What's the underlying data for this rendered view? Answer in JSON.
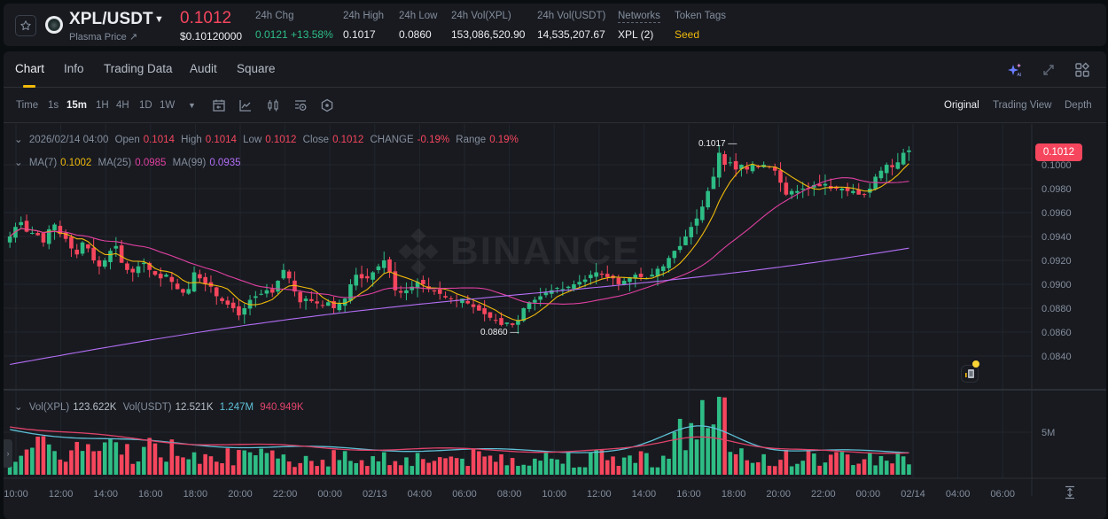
{
  "header": {
    "pair": "XPL/USDT",
    "subtitle": "Plasma Price ↗",
    "last_price": "0.1012",
    "usd_price": "$0.10120000",
    "stats": [
      {
        "label": "24h Chg",
        "value": "0.0121 +13.58%",
        "color": "green"
      },
      {
        "label": "24h High",
        "value": "0.1017"
      },
      {
        "label": "24h Low",
        "value": "0.0860"
      },
      {
        "label": "24h Vol(XPL)",
        "value": "153,086,520.90"
      },
      {
        "label": "24h Vol(USDT)",
        "value": "14,535,207.67"
      },
      {
        "label": "Networks",
        "value": "XPL (2)"
      },
      {
        "label": "Token Tags",
        "value": "Seed",
        "color": "yellow"
      }
    ]
  },
  "tabs": [
    "Chart",
    "Info",
    "Trading Data",
    "Audit",
    "Square"
  ],
  "active_tab": "Chart",
  "toolbar": {
    "time_label": "Time",
    "intervals": [
      "1s",
      "15m",
      "1H",
      "4H",
      "1D",
      "1W"
    ],
    "active_interval": "15m",
    "views": [
      "Original",
      "Trading View",
      "Depth"
    ],
    "active_view": "Original"
  },
  "ohlc_legend": {
    "datetime": "2026/02/14 04:00",
    "open_label": "Open",
    "open": "0.1014",
    "high_label": "High",
    "high": "0.1014",
    "low_label": "Low",
    "low": "0.1012",
    "close_label": "Close",
    "close": "0.1012",
    "change_label": "CHANGE",
    "change": "-0.19%",
    "range_label": "Range",
    "range": "0.19%"
  },
  "ma_legend": {
    "ma7_label": "MA(7)",
    "ma7": "0.1002",
    "ma25_label": "MA(25)",
    "ma25": "0.0985",
    "ma99_label": "MA(99)",
    "ma99": "0.0935"
  },
  "vol_legend": {
    "vol_xpl_label": "Vol(XPL)",
    "vol_xpl": "123.622K",
    "vol_usdt_label": "Vol(USDT)",
    "vol_usdt": "12.521K",
    "ma_a": "1.247M",
    "ma_b": "940.949K"
  },
  "price_tag": "0.1012",
  "high_marker": "0.1017",
  "low_marker": "0.0860",
  "watermark": "BINANCE",
  "colors": {
    "up": "#2ebd85",
    "down": "#f6465d",
    "ma7": "#f0b90b",
    "ma25": "#e040a0",
    "ma99": "#b46ef5",
    "vol_ma_a": "#5ec0d6",
    "vol_ma_b": "#e0436a",
    "accent": "#f0b90b"
  },
  "chart_data": {
    "type": "candlestick",
    "interval": "15m",
    "y_ticks": [
      "0.1000",
      "0.0980",
      "0.0960",
      "0.0940",
      "0.0920",
      "0.0900",
      "0.0880",
      "0.0860",
      "0.0840"
    ],
    "vol_ticks": [
      "5M"
    ],
    "x_ticks": [
      "10:00",
      "12:00",
      "14:00",
      "16:00",
      "18:00",
      "20:00",
      "22:00",
      "00:00",
      "02/13",
      "04:00",
      "06:00",
      "08:00",
      "10:00",
      "12:00",
      "14:00",
      "16:00",
      "18:00",
      "20:00",
      "22:00",
      "00:00",
      "02/14",
      "04:00",
      "06:00"
    ],
    "close_path": [
      0.094,
      0.0948,
      0.0952,
      0.0944,
      0.0943,
      0.0941,
      0.0935,
      0.0946,
      0.095,
      0.0942,
      0.0938,
      0.093,
      0.0925,
      0.0935,
      0.093,
      0.092,
      0.0915,
      0.092,
      0.0928,
      0.0932,
      0.0918,
      0.0912,
      0.091,
      0.0915,
      0.0918,
      0.0912,
      0.0908,
      0.0905,
      0.0908,
      0.0902,
      0.0896,
      0.0893,
      0.0896,
      0.091,
      0.0905,
      0.09,
      0.0898,
      0.089,
      0.0886,
      0.0883,
      0.088,
      0.0874,
      0.088,
      0.0887,
      0.089,
      0.0892,
      0.0895,
      0.0893,
      0.0903,
      0.0912,
      0.0905,
      0.0894,
      0.0885,
      0.0888,
      0.0886,
      0.0884,
      0.0882,
      0.0885,
      0.088,
      0.0884,
      0.0888,
      0.09,
      0.0908,
      0.0905,
      0.0905,
      0.091,
      0.0915,
      0.092,
      0.091,
      0.0895,
      0.0893,
      0.0895,
      0.0898,
      0.0902,
      0.09,
      0.0896,
      0.0894,
      0.0892,
      0.0889,
      0.0888,
      0.0886,
      0.0888,
      0.0884,
      0.0881,
      0.0878,
      0.0875,
      0.0872,
      0.087,
      0.0866,
      0.0868,
      0.0866,
      0.087,
      0.088,
      0.0885,
      0.0887,
      0.089,
      0.0893,
      0.0895,
      0.0897,
      0.0896,
      0.0898,
      0.09,
      0.0902,
      0.0904,
      0.0908,
      0.091,
      0.0908,
      0.0906,
      0.0905,
      0.09,
      0.0903,
      0.0906,
      0.0908,
      0.0906,
      0.0905,
      0.0908,
      0.0913,
      0.0915,
      0.0922,
      0.0928,
      0.0932,
      0.094,
      0.0948,
      0.0955,
      0.0965,
      0.0978,
      0.099,
      0.101,
      0.1,
      0.1002,
      0.0996,
      0.1,
      0.0996,
      0.1,
      0.0998,
      0.1,
      0.0998,
      0.0995,
      0.0985,
      0.0975,
      0.0978,
      0.0978,
      0.098,
      0.098,
      0.0983,
      0.0982,
      0.0984,
      0.098,
      0.098,
      0.098,
      0.0978,
      0.0978,
      0.0975,
      0.0975,
      0.098,
      0.099,
      0.0995,
      0.1,
      0.0998,
      0.1002,
      0.101,
      0.1012
    ]
  }
}
